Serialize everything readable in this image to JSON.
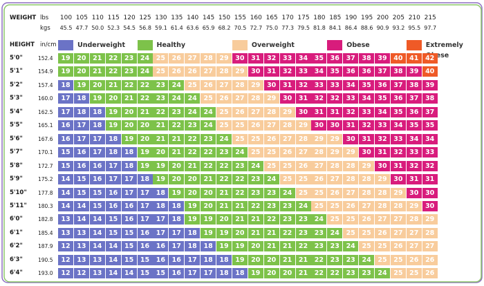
{
  "chart_data": {
    "type": "heatmap",
    "header": {
      "weight_label": "WEIGHT",
      "lbs_label": "lbs",
      "kgs_label": "kgs",
      "height_label": "HEIGHT",
      "unit_label": "in/cm"
    },
    "weights_lbs": [
      "100",
      "105",
      "110",
      "115",
      "120",
      "125",
      "130",
      "135",
      "140",
      "145",
      "150",
      "155",
      "160",
      "165",
      "170",
      "175",
      "180",
      "185",
      "190",
      "195",
      "200",
      "205",
      "210",
      "215"
    ],
    "weights_kg": [
      "45.5",
      "47.7",
      "50.0",
      "52.3",
      "54.5",
      "56.8",
      "59.1",
      "61.4",
      "63.6",
      "65.9",
      "68.2",
      "70.5",
      "72.7",
      "75.0",
      "77.3",
      "79.5",
      "81.8",
      "84.1",
      "86.4",
      "88.6",
      "90.9",
      "93.2",
      "95.5",
      "97.7"
    ],
    "heights_ft": [
      "5'0\"",
      "5'1\"",
      "5'2\"",
      "5'3\"",
      "5'4\"",
      "5'5\"",
      "5'6\"",
      "5'7\"",
      "5'8\"",
      "5'9\"",
      "5'10\"",
      "5'11\"",
      "6'0\"",
      "6'1\"",
      "6'2\"",
      "6'3\"",
      "6'4\""
    ],
    "heights_cm": [
      "152.4",
      "154.9",
      "157.4",
      "160.0",
      "162.5",
      "165.1",
      "167.6",
      "170.1",
      "172.7",
      "175.2",
      "177.8",
      "180.3",
      "182.8",
      "185.4",
      "187.9",
      "190.5",
      "193.0"
    ],
    "categories": [
      {
        "name": "Underweight",
        "color": "#6b73c6"
      },
      {
        "name": "Healthy",
        "color": "#7dc24a"
      },
      {
        "name": "Overweight",
        "color": "#f8cc9c"
      },
      {
        "name": "Obese",
        "color": "#d81c7c"
      },
      {
        "name": "Extremely Obese",
        "color": "#ef5a27"
      }
    ],
    "rows": [
      [
        19,
        20,
        21,
        22,
        23,
        24,
        25,
        26,
        27,
        28,
        29,
        30,
        31,
        32,
        33,
        34,
        35,
        36,
        37,
        38,
        39,
        40,
        41,
        42
      ],
      [
        19,
        20,
        21,
        22,
        23,
        24,
        25,
        26,
        26,
        27,
        28,
        29,
        30,
        31,
        32,
        33,
        34,
        35,
        36,
        36,
        37,
        38,
        39,
        40
      ],
      [
        18,
        19,
        20,
        21,
        22,
        22,
        23,
        24,
        25,
        26,
        27,
        28,
        29,
        30,
        31,
        32,
        33,
        33,
        34,
        35,
        36,
        37,
        38,
        39
      ],
      [
        17,
        18,
        19,
        20,
        21,
        22,
        23,
        24,
        24,
        25,
        26,
        27,
        28,
        29,
        30,
        31,
        32,
        32,
        33,
        34,
        35,
        36,
        37,
        38
      ],
      [
        17,
        18,
        18,
        19,
        20,
        21,
        22,
        23,
        24,
        24,
        25,
        26,
        27,
        28,
        29,
        30,
        31,
        31,
        32,
        33,
        34,
        35,
        36,
        37
      ],
      [
        16,
        17,
        18,
        19,
        20,
        20,
        21,
        22,
        23,
        24,
        25,
        25,
        26,
        27,
        28,
        29,
        30,
        30,
        31,
        32,
        33,
        34,
        35,
        35
      ],
      [
        16,
        17,
        17,
        18,
        19,
        20,
        21,
        21,
        22,
        23,
        24,
        25,
        25,
        26,
        27,
        28,
        29,
        29,
        30,
        31,
        32,
        33,
        34,
        34
      ],
      [
        15,
        16,
        17,
        18,
        18,
        19,
        20,
        21,
        22,
        22,
        23,
        24,
        25,
        25,
        26,
        27,
        28,
        29,
        29,
        30,
        31,
        32,
        33,
        33
      ],
      [
        15,
        16,
        16,
        17,
        18,
        19,
        19,
        20,
        21,
        22,
        22,
        23,
        24,
        25,
        25,
        26,
        27,
        28,
        28,
        29,
        30,
        31,
        32,
        32
      ],
      [
        14,
        15,
        16,
        17,
        17,
        18,
        19,
        20,
        20,
        21,
        22,
        22,
        23,
        24,
        25,
        25,
        26,
        27,
        28,
        28,
        29,
        30,
        31,
        31
      ],
      [
        14,
        15,
        15,
        16,
        17,
        17,
        18,
        19,
        20,
        20,
        21,
        22,
        23,
        23,
        24,
        25,
        25,
        26,
        27,
        28,
        28,
        29,
        30,
        30
      ],
      [
        14,
        14,
        15,
        16,
        16,
        17,
        18,
        18,
        19,
        20,
        21,
        21,
        22,
        23,
        23,
        24,
        25,
        25,
        26,
        27,
        28,
        28,
        29,
        30
      ],
      [
        13,
        14,
        14,
        15,
        16,
        17,
        17,
        18,
        19,
        19,
        20,
        21,
        21,
        22,
        23,
        23,
        24,
        25,
        25,
        26,
        27,
        27,
        28,
        29
      ],
      [
        13,
        13,
        14,
        15,
        15,
        16,
        17,
        17,
        18,
        19,
        19,
        20,
        21,
        21,
        22,
        23,
        23,
        24,
        25,
        25,
        26,
        27,
        27,
        28
      ],
      [
        12,
        13,
        14,
        14,
        15,
        16,
        16,
        17,
        18,
        18,
        19,
        19,
        20,
        21,
        21,
        22,
        23,
        23,
        24,
        25,
        25,
        26,
        27,
        27
      ],
      [
        12,
        13,
        13,
        14,
        15,
        15,
        16,
        16,
        17,
        18,
        18,
        19,
        20,
        20,
        21,
        21,
        22,
        23,
        23,
        24,
        25,
        25,
        26,
        26
      ],
      [
        12,
        12,
        13,
        14,
        14,
        15,
        15,
        16,
        17,
        17,
        18,
        18,
        19,
        20,
        20,
        21,
        22,
        22,
        23,
        23,
        24,
        25,
        25,
        26
      ]
    ]
  }
}
